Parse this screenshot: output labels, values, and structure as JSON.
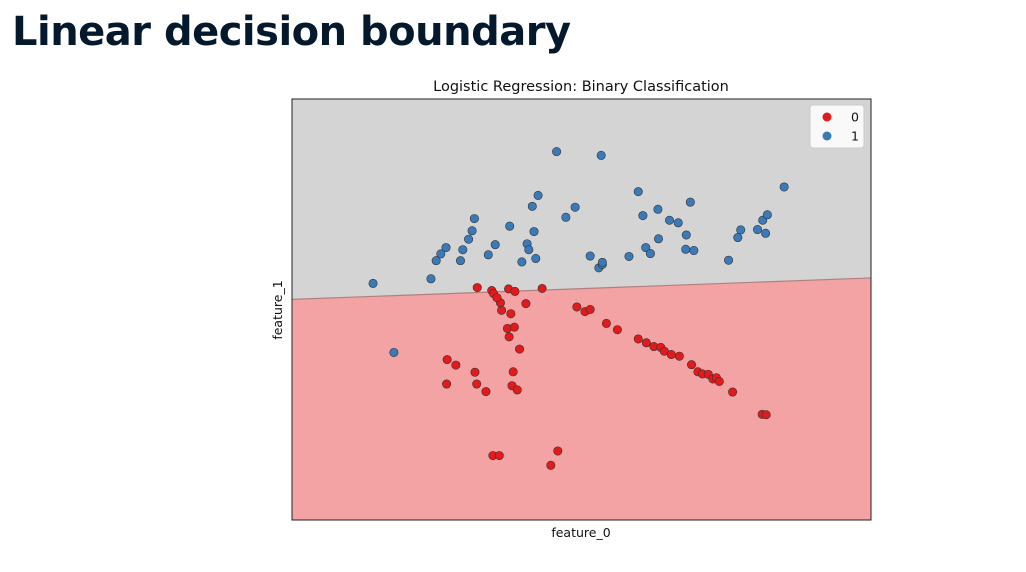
{
  "slide": {
    "title": "Linear decision boundary"
  },
  "colors": {
    "region_0": "#f4a3a4",
    "region_1": "#d4d4d4",
    "class_0": "#e31a1c",
    "class_1": "#3a7ab8",
    "boundary": "#b08080"
  },
  "chart_data": {
    "type": "scatter",
    "title": "Logistic Regression: Binary Classification",
    "xlabel": "feature_0",
    "ylabel": "feature_1",
    "xlim": [
      0,
      100
    ],
    "ylim": [
      0,
      100
    ],
    "ticks_visible": false,
    "grid": false,
    "legend": {
      "placement": "top-right",
      "entries": [
        "0",
        "1"
      ]
    },
    "decision_boundary": {
      "points": [
        [
          0,
          52.4
        ],
        [
          100,
          57.5
        ]
      ],
      "region_above": "1",
      "region_below": "0"
    },
    "series": [
      {
        "name": "0",
        "points": [
          [
            32.0,
            55.2
          ],
          [
            34.5,
            54.5
          ],
          [
            34.8,
            53.8
          ],
          [
            37.4,
            54.9
          ],
          [
            36.0,
            51.6
          ],
          [
            38.5,
            54.3
          ],
          [
            35.4,
            52.8
          ],
          [
            36.2,
            49.8
          ],
          [
            37.8,
            49.0
          ],
          [
            40.4,
            51.4
          ],
          [
            37.2,
            45.5
          ],
          [
            38.4,
            45.8
          ],
          [
            37.5,
            43.5
          ],
          [
            39.3,
            40.6
          ],
          [
            38.2,
            35.2
          ],
          [
            38.0,
            31.9
          ],
          [
            38.9,
            30.9
          ],
          [
            26.8,
            38.1
          ],
          [
            28.3,
            36.8
          ],
          [
            31.6,
            35.1
          ],
          [
            33.5,
            30.5
          ],
          [
            31.9,
            32.3
          ],
          [
            26.7,
            32.3
          ],
          [
            49.2,
            50.6
          ],
          [
            50.6,
            49.5
          ],
          [
            51.5,
            50.0
          ],
          [
            54.3,
            46.7
          ],
          [
            56.2,
            45.2
          ],
          [
            59.8,
            43.0
          ],
          [
            61.2,
            42.1
          ],
          [
            62.5,
            41.2
          ],
          [
            63.7,
            41.0
          ],
          [
            64.3,
            40.1
          ],
          [
            65.5,
            39.3
          ],
          [
            66.9,
            38.9
          ],
          [
            69.0,
            36.9
          ],
          [
            70.1,
            35.2
          ],
          [
            70.9,
            34.7
          ],
          [
            71.9,
            34.6
          ],
          [
            72.7,
            33.5
          ],
          [
            73.3,
            33.8
          ],
          [
            73.8,
            32.9
          ],
          [
            76.1,
            30.4
          ],
          [
            81.2,
            25.1
          ],
          [
            81.9,
            25.0
          ],
          [
            34.7,
            15.3
          ],
          [
            35.8,
            15.3
          ],
          [
            44.7,
            13.0
          ],
          [
            45.9,
            16.4
          ],
          [
            43.2,
            55.0
          ]
        ]
      },
      {
        "name": "1",
        "points": [
          [
            45.7,
            87.5
          ],
          [
            53.4,
            86.6
          ],
          [
            14.0,
            56.2
          ],
          [
            17.6,
            39.8
          ],
          [
            24.0,
            57.3
          ],
          [
            24.9,
            61.6
          ],
          [
            25.7,
            63.2
          ],
          [
            26.6,
            64.7
          ],
          [
            29.1,
            61.6
          ],
          [
            29.5,
            64.2
          ],
          [
            30.5,
            66.7
          ],
          [
            31.1,
            68.7
          ],
          [
            31.5,
            71.6
          ],
          [
            33.9,
            63.0
          ],
          [
            35.1,
            65.4
          ],
          [
            37.6,
            69.8
          ],
          [
            39.7,
            61.3
          ],
          [
            40.6,
            65.6
          ],
          [
            40.9,
            64.2
          ],
          [
            41.8,
            68.5
          ],
          [
            42.1,
            62.1
          ],
          [
            41.5,
            74.5
          ],
          [
            42.5,
            77.1
          ],
          [
            47.3,
            71.9
          ],
          [
            48.9,
            74.3
          ],
          [
            51.5,
            62.7
          ],
          [
            53.0,
            59.9
          ],
          [
            53.6,
            60.7
          ],
          [
            53.6,
            61.2
          ],
          [
            58.2,
            62.6
          ],
          [
            59.8,
            78.0
          ],
          [
            60.6,
            72.3
          ],
          [
            61.1,
            64.7
          ],
          [
            61.9,
            63.3
          ],
          [
            63.2,
            73.8
          ],
          [
            63.3,
            66.8
          ],
          [
            65.2,
            71.2
          ],
          [
            66.7,
            70.6
          ],
          [
            68.0,
            64.3
          ],
          [
            68.1,
            67.7
          ],
          [
            68.8,
            75.5
          ],
          [
            69.4,
            64.0
          ],
          [
            75.4,
            61.7
          ],
          [
            77.0,
            67.1
          ],
          [
            77.5,
            68.9
          ],
          [
            80.4,
            69.0
          ],
          [
            81.8,
            68.1
          ],
          [
            81.3,
            71.2
          ],
          [
            82.1,
            72.5
          ],
          [
            85.0,
            79.1
          ]
        ]
      }
    ]
  }
}
